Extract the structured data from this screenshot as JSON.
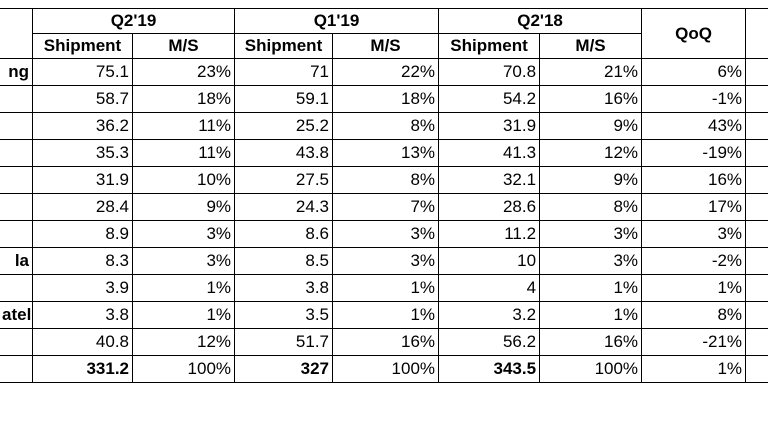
{
  "header": {
    "groups": [
      "Q2'19",
      "Q1'19",
      "Q2'18"
    ],
    "shipment_label": "Shipment",
    "ms_label": "M/S",
    "qoq_label": "QoQ"
  },
  "rows": [
    {
      "name": "ng",
      "cells": [
        "75.1",
        "23%",
        "71",
        "22%",
        "70.8",
        "21%",
        "6%"
      ]
    },
    {
      "name": "",
      "cells": [
        "58.7",
        "18%",
        "59.1",
        "18%",
        "54.2",
        "16%",
        "-1%"
      ]
    },
    {
      "name": "",
      "cells": [
        "36.2",
        "11%",
        "25.2",
        "8%",
        "31.9",
        "9%",
        "43%"
      ]
    },
    {
      "name": "",
      "cells": [
        "35.3",
        "11%",
        "43.8",
        "13%",
        "41.3",
        "12%",
        "-19%"
      ]
    },
    {
      "name": "",
      "cells": [
        "31.9",
        "10%",
        "27.5",
        "8%",
        "32.1",
        "9%",
        "16%"
      ]
    },
    {
      "name": "",
      "cells": [
        "28.4",
        "9%",
        "24.3",
        "7%",
        "28.6",
        "8%",
        "17%"
      ]
    },
    {
      "name": "",
      "cells": [
        "8.9",
        "3%",
        "8.6",
        "3%",
        "11.2",
        "3%",
        "3%"
      ]
    },
    {
      "name": "la",
      "cells": [
        "8.3",
        "3%",
        "8.5",
        "3%",
        "10",
        "3%",
        "-2%"
      ]
    },
    {
      "name": "",
      "cells": [
        "3.9",
        "1%",
        "3.8",
        "1%",
        "4",
        "1%",
        "1%"
      ]
    },
    {
      "name": "atel",
      "cells": [
        "3.8",
        "1%",
        "3.5",
        "1%",
        "3.2",
        "1%",
        "8%"
      ]
    },
    {
      "name": "",
      "cells": [
        "40.8",
        "12%",
        "51.7",
        "16%",
        "56.2",
        "16%",
        "-21%"
      ]
    }
  ],
  "total": {
    "name": "",
    "cells": [
      "331.2",
      "100%",
      "327",
      "100%",
      "343.5",
      "100%",
      "1%"
    ]
  }
}
